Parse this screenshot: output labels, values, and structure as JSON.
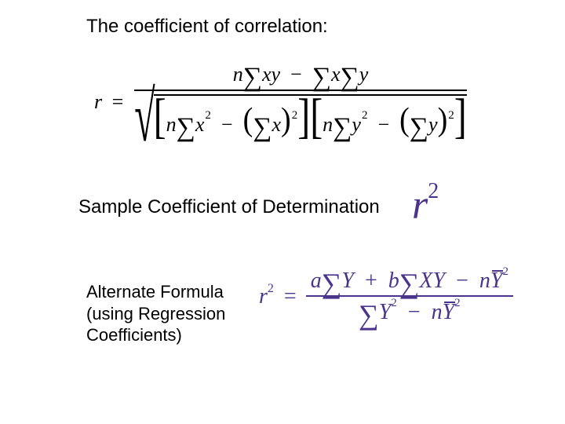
{
  "colors": {
    "text": "#000000",
    "accent": "#4a348c",
    "background": "#ffffff"
  },
  "heading1": "The coefficient of correlation:",
  "heading2": "Sample Coefficient of Determination",
  "heading3_line1": "Alternate Formula",
  "heading3_line2": "(using Regression",
  "heading3_line3": "Coefficients)",
  "formula1": {
    "lhs_var": "r",
    "eq": "=",
    "num": {
      "n": "n",
      "sum": "∑",
      "xy": "xy",
      "minus": "−",
      "x": "x",
      "y": "y"
    },
    "den": {
      "sqrt": "√",
      "lbr": "[",
      "rbr": "]",
      "n": "n",
      "sum": "∑",
      "x": "x",
      "y": "y",
      "sq": "2",
      "minus": "−",
      "lp": "(",
      "rp": ")"
    }
  },
  "r2": {
    "r": "r",
    "two": "2"
  },
  "formula2": {
    "lhs_r": "r",
    "lhs_two": "2",
    "eq": "=",
    "num": {
      "a": "a",
      "sum": "∑",
      "Y": "Y",
      "plus": "+",
      "b": "b",
      "X": "X",
      "minus": "−",
      "n": "n",
      "two": "2"
    },
    "den": {
      "sum": "∑",
      "Y": "Y",
      "two": "2",
      "minus": "−",
      "n": "n"
    }
  }
}
